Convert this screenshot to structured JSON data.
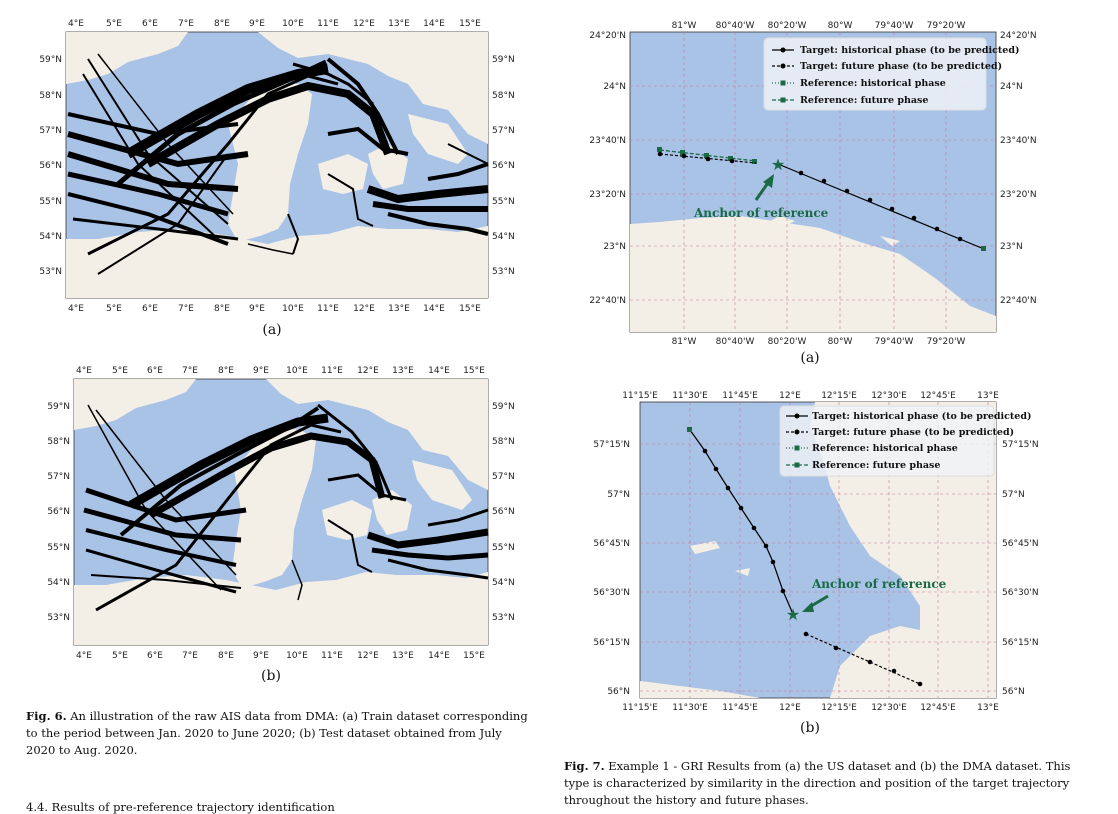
{
  "fig6": {
    "panel_a": {
      "label": "(a)",
      "lon_ticks": [
        "4°E",
        "5°E",
        "6°E",
        "7°E",
        "8°E",
        "9°E",
        "10°E",
        "11°E",
        "12°E",
        "13°E",
        "14°E",
        "15°E"
      ],
      "lat_ticks": [
        "59°N",
        "58°N",
        "57°N",
        "56°N",
        "55°N",
        "54°N",
        "53°N"
      ]
    },
    "panel_b": {
      "label": "(b)",
      "lon_ticks": [
        "4°E",
        "5°E",
        "6°E",
        "7°E",
        "8°E",
        "9°E",
        "10°E",
        "11°E",
        "12°E",
        "13°E",
        "14°E",
        "15°E"
      ],
      "lat_ticks": [
        "59°N",
        "58°N",
        "57°N",
        "56°N",
        "55°N",
        "54°N",
        "53°N"
      ]
    },
    "caption_label": "Fig. 6.",
    "caption_text": "An illustration of the raw AIS data from DMA: (a) Train dataset corresponding to the period between Jan. 2020 to June 2020; (b) Test dataset obtained from July 2020 to Aug. 2020."
  },
  "fig7": {
    "panel_a": {
      "label": "(a)",
      "lon_ticks": [
        "81°W",
        "80°40'W",
        "80°20'W",
        "80°W",
        "79°40'W",
        "79°20'W"
      ],
      "lat_ticks": [
        "24°20'N",
        "24°N",
        "23°40'N",
        "23°20'N",
        "23°N",
        "22°40'N"
      ],
      "legend": [
        "Target: historical phase (to be predicted)",
        "Target: future phase (to be predicted)",
        "Reference: historical phase",
        "Reference: future phase"
      ],
      "anchor_label": "Anchor of reference"
    },
    "panel_b": {
      "label": "(b)",
      "lon_ticks": [
        "11°15'E",
        "11°30'E",
        "11°45'E",
        "12°E",
        "12°15'E",
        "12°30'E",
        "12°45'E",
        "13°E"
      ],
      "lat_ticks": [
        "57°15'N",
        "57°N",
        "56°45'N",
        "56°30'N",
        "56°15'N",
        "56°N"
      ],
      "legend": [
        "Target: historical phase (to be predicted)",
        "Target: future phase (to be predicted)",
        "Reference: historical phase",
        "Reference: future phase"
      ],
      "anchor_label": "Anchor of reference"
    },
    "caption_label": "Fig. 7.",
    "caption_text": "Example 1 - GRI Results from (a) the US dataset and (b) the DMA dataset. This type is characterized by similarity in the direction and position of the target trajectory throughout the history and future phases."
  },
  "section_heading": "4.4. Results of pre-reference trajectory identification",
  "colors": {
    "sea": "#a9c3e6",
    "land": "#f3efe6",
    "track": "#000000",
    "reference": "#1a6b45"
  }
}
